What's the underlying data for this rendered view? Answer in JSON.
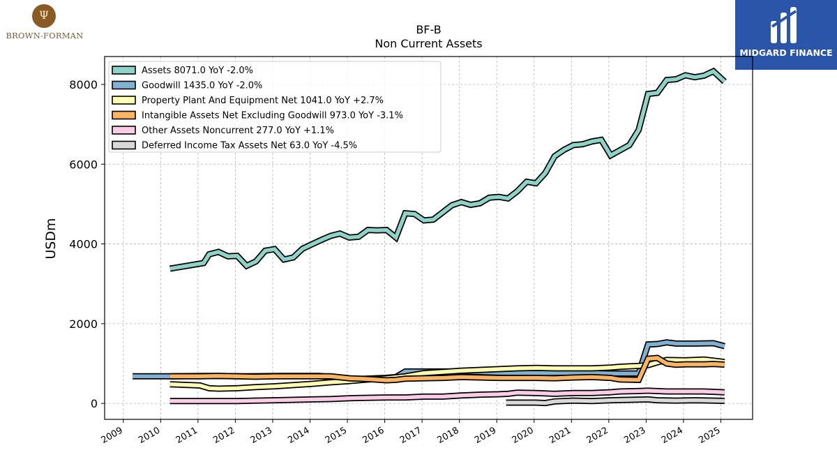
{
  "logos": {
    "left": {
      "text": "BROWN-FORMAN",
      "color": "#8a5a24"
    },
    "right": {
      "text": "MIDGARD FINANCE",
      "bg": "#2a55a8"
    }
  },
  "chart_data": {
    "type": "line",
    "title": "BF-B",
    "subtitle": "Non Current  Assets",
    "ylabel": "USDm",
    "xlabel": "",
    "xlim": [
      2008.5,
      2025.85
    ],
    "ylim": [
      -400,
      8700
    ],
    "yticks": [
      0,
      2000,
      4000,
      6000,
      8000
    ],
    "xticks": [
      "2009",
      "2010",
      "2011",
      "2012",
      "2013",
      "2014",
      "2015",
      "2016",
      "2017",
      "2018",
      "2019",
      "2020",
      "2021",
      "2022",
      "2023",
      "2024",
      "2025"
    ],
    "grid": true,
    "legend_position": "top-left",
    "series": [
      {
        "name": "Assets",
        "legend": "Assets  8071.0 YoY -2.0%",
        "color": "#8dd3c7",
        "points": [
          [
            2010.25,
            3380
          ],
          [
            2011.15,
            3520
          ],
          [
            2011.3,
            3740
          ],
          [
            2011.55,
            3800
          ],
          [
            2011.8,
            3690
          ],
          [
            2012.05,
            3700
          ],
          [
            2012.3,
            3450
          ],
          [
            2012.55,
            3560
          ],
          [
            2012.8,
            3830
          ],
          [
            2013.05,
            3870
          ],
          [
            2013.3,
            3610
          ],
          [
            2013.55,
            3660
          ],
          [
            2013.8,
            3880
          ],
          [
            2014.05,
            3990
          ],
          [
            2014.3,
            4100
          ],
          [
            2014.55,
            4200
          ],
          [
            2014.8,
            4260
          ],
          [
            2015.05,
            4160
          ],
          [
            2015.3,
            4180
          ],
          [
            2015.55,
            4350
          ],
          [
            2015.8,
            4340
          ],
          [
            2016.05,
            4350
          ],
          [
            2016.3,
            4160
          ],
          [
            2016.55,
            4770
          ],
          [
            2016.8,
            4750
          ],
          [
            2017.05,
            4590
          ],
          [
            2017.3,
            4610
          ],
          [
            2017.55,
            4790
          ],
          [
            2017.8,
            4970
          ],
          [
            2018.05,
            5050
          ],
          [
            2018.3,
            4980
          ],
          [
            2018.55,
            5020
          ],
          [
            2018.8,
            5160
          ],
          [
            2019.05,
            5180
          ],
          [
            2019.3,
            5140
          ],
          [
            2019.55,
            5320
          ],
          [
            2019.8,
            5560
          ],
          [
            2020.05,
            5520
          ],
          [
            2020.3,
            5780
          ],
          [
            2020.55,
            6200
          ],
          [
            2020.8,
            6360
          ],
          [
            2021.05,
            6480
          ],
          [
            2021.3,
            6500
          ],
          [
            2021.55,
            6570
          ],
          [
            2021.8,
            6610
          ],
          [
            2022.05,
            6220
          ],
          [
            2022.3,
            6350
          ],
          [
            2022.55,
            6480
          ],
          [
            2022.8,
            6860
          ],
          [
            2023.05,
            7760
          ],
          [
            2023.3,
            7790
          ],
          [
            2023.55,
            8110
          ],
          [
            2023.8,
            8130
          ],
          [
            2024.05,
            8230
          ],
          [
            2024.3,
            8180
          ],
          [
            2024.55,
            8220
          ],
          [
            2024.8,
            8330
          ],
          [
            2025.1,
            8071
          ]
        ]
      },
      {
        "name": "Goodwill",
        "legend": "Goodwill  1435.0 YoY -2.0%",
        "color": "#80b1d3",
        "points": [
          [
            2009.25,
            680
          ],
          [
            2010.25,
            680
          ],
          [
            2011.25,
            690
          ],
          [
            2012.25,
            680
          ],
          [
            2013.25,
            690
          ],
          [
            2014.25,
            690
          ],
          [
            2015.25,
            610
          ],
          [
            2016.0,
            640
          ],
          [
            2016.3,
            660
          ],
          [
            2016.55,
            800
          ],
          [
            2017.05,
            800
          ],
          [
            2018.05,
            800
          ],
          [
            2019.05,
            770
          ],
          [
            2020.05,
            760
          ],
          [
            2021.05,
            770
          ],
          [
            2022.05,
            750
          ],
          [
            2022.8,
            750
          ],
          [
            2023.05,
            1480
          ],
          [
            2023.3,
            1490
          ],
          [
            2023.55,
            1530
          ],
          [
            2023.8,
            1500
          ],
          [
            2024.3,
            1500
          ],
          [
            2024.8,
            1510
          ],
          [
            2025.1,
            1435
          ]
        ]
      },
      {
        "name": "Property Plant And Equipment Net",
        "legend": "Property Plant And Equipment Net  1041.0 YoY +2.7%",
        "color": "#ffffb3",
        "points": [
          [
            2010.25,
            480
          ],
          [
            2010.8,
            460
          ],
          [
            2011.05,
            450
          ],
          [
            2011.3,
            380
          ],
          [
            2011.55,
            370
          ],
          [
            2012.05,
            380
          ],
          [
            2012.55,
            410
          ],
          [
            2013.05,
            430
          ],
          [
            2013.55,
            460
          ],
          [
            2014.05,
            490
          ],
          [
            2014.55,
            530
          ],
          [
            2015.05,
            560
          ],
          [
            2015.55,
            600
          ],
          [
            2016.05,
            630
          ],
          [
            2016.55,
            680
          ],
          [
            2017.05,
            760
          ],
          [
            2017.55,
            790
          ],
          [
            2018.05,
            820
          ],
          [
            2018.55,
            840
          ],
          [
            2019.05,
            860
          ],
          [
            2019.55,
            880
          ],
          [
            2020.05,
            890
          ],
          [
            2020.55,
            880
          ],
          [
            2021.05,
            880
          ],
          [
            2021.55,
            880
          ],
          [
            2022.05,
            900
          ],
          [
            2022.3,
            920
          ],
          [
            2022.8,
            940
          ],
          [
            2023.05,
            960
          ],
          [
            2023.3,
            1030
          ],
          [
            2023.55,
            1090
          ],
          [
            2024.05,
            1080
          ],
          [
            2024.55,
            1100
          ],
          [
            2025.1,
            1041
          ]
        ]
      },
      {
        "name": "Intangible Assets Net Excluding Goodwill",
        "legend": "Intangible Assets Net Excluding Goodwill  973.0 YoY -3.1%",
        "color": "#fdb462",
        "points": [
          [
            2010.25,
            680
          ],
          [
            2011.05,
            680
          ],
          [
            2011.55,
            690
          ],
          [
            2012.05,
            680
          ],
          [
            2012.55,
            670
          ],
          [
            2013.05,
            680
          ],
          [
            2013.55,
            680
          ],
          [
            2014.05,
            680
          ],
          [
            2014.55,
            680
          ],
          [
            2015.05,
            630
          ],
          [
            2015.55,
            610
          ],
          [
            2016.05,
            580
          ],
          [
            2016.3,
            590
          ],
          [
            2016.55,
            620
          ],
          [
            2017.05,
            630
          ],
          [
            2017.55,
            640
          ],
          [
            2018.05,
            660
          ],
          [
            2018.55,
            650
          ],
          [
            2019.05,
            640
          ],
          [
            2019.55,
            640
          ],
          [
            2020.05,
            640
          ],
          [
            2020.55,
            630
          ],
          [
            2021.05,
            650
          ],
          [
            2021.55,
            660
          ],
          [
            2022.05,
            640
          ],
          [
            2022.3,
            600
          ],
          [
            2022.8,
            590
          ],
          [
            2023.05,
            1120
          ],
          [
            2023.3,
            1140
          ],
          [
            2023.55,
            1000
          ],
          [
            2023.8,
            970
          ],
          [
            2024.05,
            980
          ],
          [
            2024.55,
            980
          ],
          [
            2024.8,
            990
          ],
          [
            2025.1,
            973
          ]
        ]
      },
      {
        "name": "Other Assets Noncurrent",
        "legend": "Other Assets Noncurrent  277.0 YoY +1.1%",
        "color": "#fccde5",
        "points": [
          [
            2010.25,
            60
          ],
          [
            2011.05,
            60
          ],
          [
            2012.05,
            60
          ],
          [
            2012.55,
            70
          ],
          [
            2013.05,
            80
          ],
          [
            2013.55,
            90
          ],
          [
            2014.05,
            100
          ],
          [
            2014.55,
            110
          ],
          [
            2015.05,
            130
          ],
          [
            2015.55,
            140
          ],
          [
            2016.05,
            150
          ],
          [
            2016.55,
            150
          ],
          [
            2017.05,
            170
          ],
          [
            2017.55,
            170
          ],
          [
            2018.05,
            200
          ],
          [
            2018.55,
            220
          ],
          [
            2019.05,
            230
          ],
          [
            2019.3,
            240
          ],
          [
            2019.55,
            270
          ],
          [
            2020.05,
            260
          ],
          [
            2020.55,
            240
          ],
          [
            2021.05,
            260
          ],
          [
            2021.55,
            260
          ],
          [
            2022.05,
            280
          ],
          [
            2022.3,
            300
          ],
          [
            2022.8,
            310
          ],
          [
            2023.05,
            320
          ],
          [
            2023.55,
            300
          ],
          [
            2024.05,
            300
          ],
          [
            2024.55,
            300
          ],
          [
            2025.1,
            277
          ]
        ]
      },
      {
        "name": "Deferred Income Tax Assets Net",
        "legend": "Deferred Income Tax Assets Net  63.0 YoY -4.5%",
        "color": "#d9d9d9",
        "points": [
          [
            2019.25,
            20
          ],
          [
            2020.05,
            20
          ],
          [
            2020.3,
            10
          ],
          [
            2020.55,
            50
          ],
          [
            2021.05,
            70
          ],
          [
            2021.55,
            60
          ],
          [
            2022.05,
            80
          ],
          [
            2022.55,
            90
          ],
          [
            2023.05,
            100
          ],
          [
            2023.3,
            80
          ],
          [
            2023.8,
            70
          ],
          [
            2024.3,
            80
          ],
          [
            2024.8,
            70
          ],
          [
            2025.1,
            63
          ]
        ]
      }
    ]
  }
}
